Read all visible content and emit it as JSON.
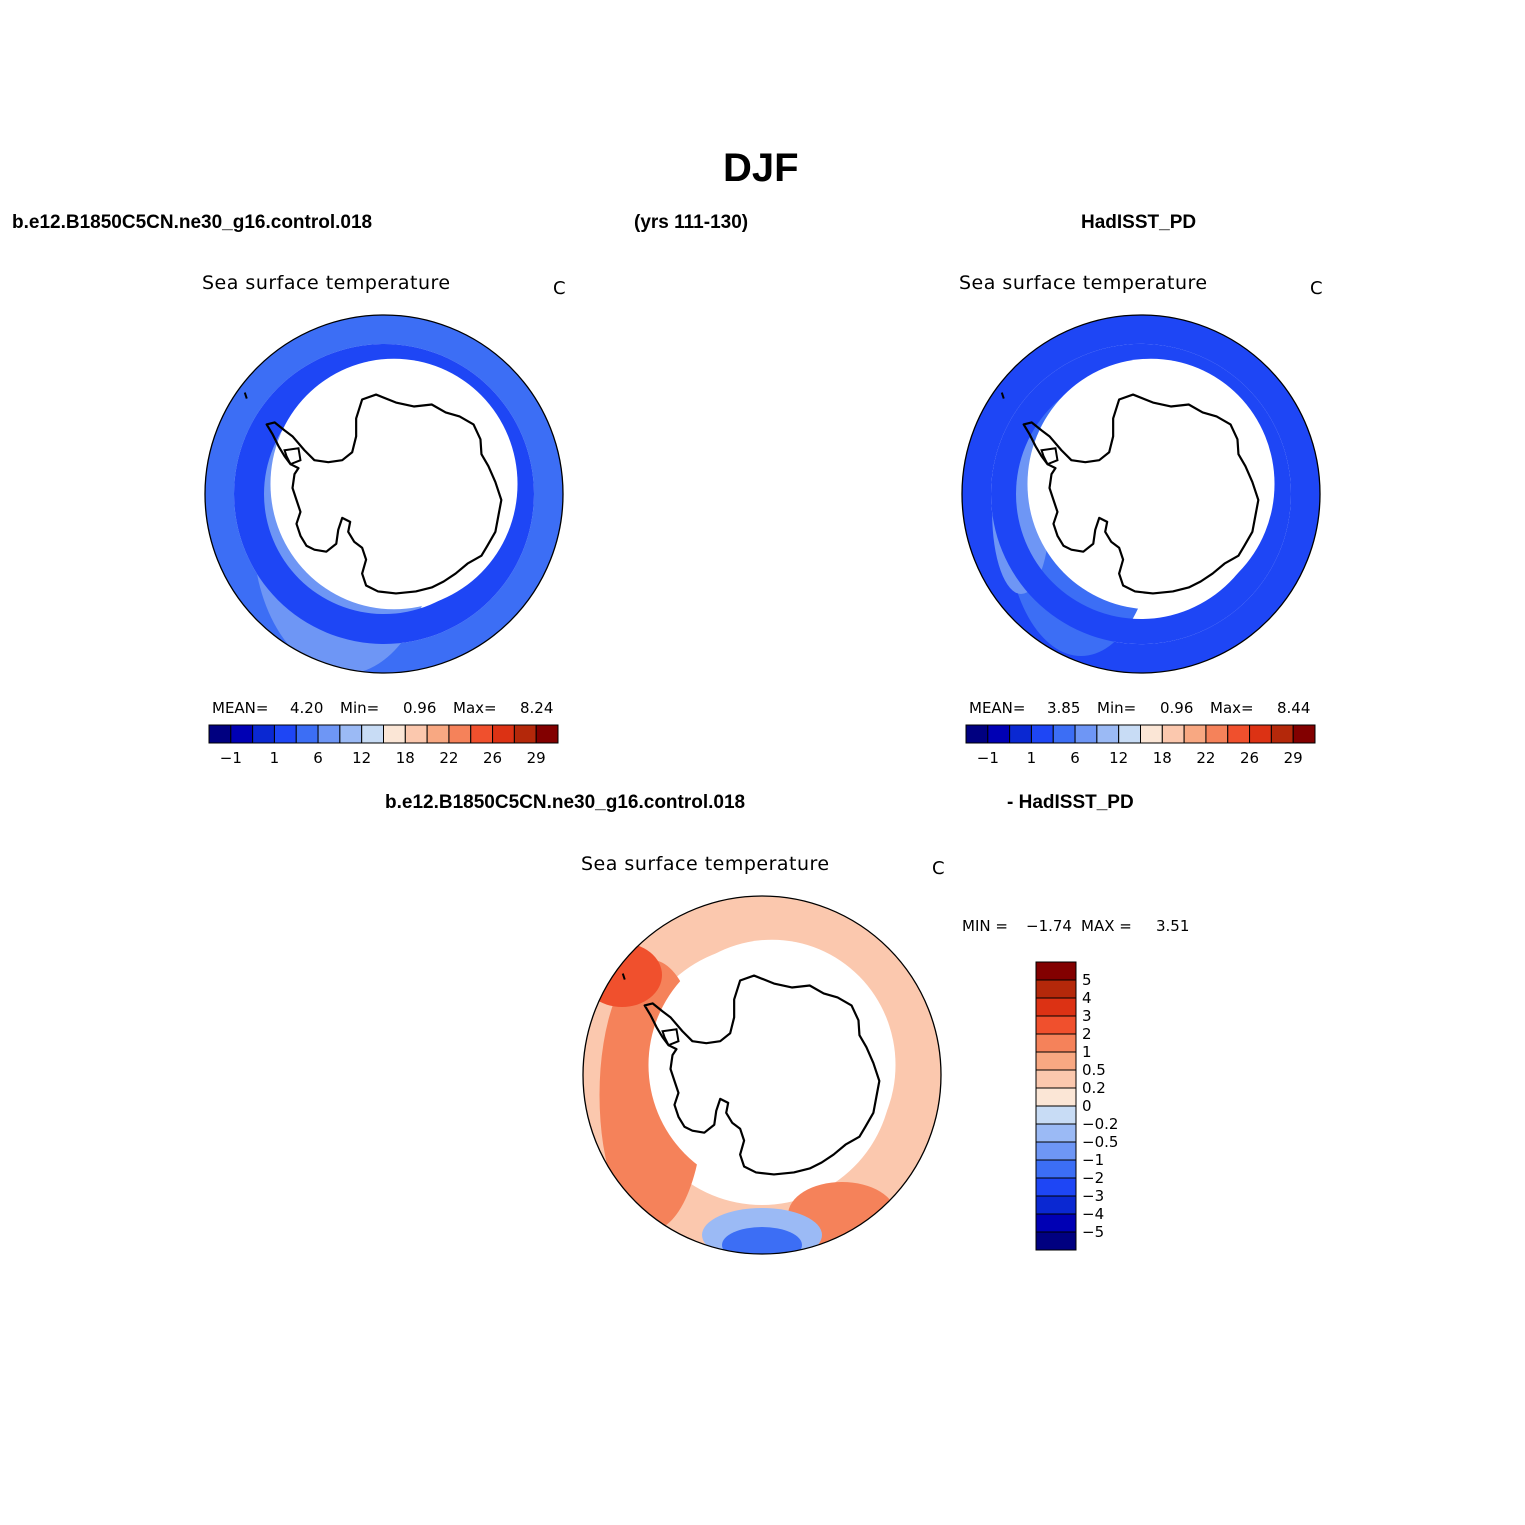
{
  "title": "DJF",
  "header": {
    "case_name": "b.e12.B1850C5CN.ne30_g16.control.018",
    "years": "(yrs 111-130)",
    "obs_name": "HadISST_PD",
    "diff_case": "b.e12.B1850C5CN.ne30_g16.control.018",
    "diff_obs": "- HadISST_PD"
  },
  "panels": {
    "model": {
      "title": "Sea surface temperature",
      "units": "C",
      "mean_label": "MEAN=",
      "mean": "4.20",
      "min_label": "Min=",
      "min": "0.96",
      "max_label": "Max=",
      "max": "8.24"
    },
    "obs": {
      "title": "Sea surface temperature",
      "units": "C",
      "mean_label": "MEAN=",
      "mean": "3.85",
      "min_label": "Min=",
      "min": "0.96",
      "max_label": "Max=",
      "max": "8.44"
    },
    "diff": {
      "title": "Sea surface temperature",
      "units": "C",
      "min_label": "MIN =",
      "min": "−1.74",
      "max_label": "MAX =",
      "max": "3.51"
    }
  },
  "colorbar_abs": {
    "colors": [
      "#000080",
      "#0000b4",
      "#0a28d2",
      "#1e46f5",
      "#3c6ef5",
      "#6e96f5",
      "#9bbaf5",
      "#c8dcf5",
      "#fbe6d6",
      "#fbc8ae",
      "#f8a882",
      "#f5825a",
      "#f0502d",
      "#dc3214",
      "#b4280a",
      "#820000"
    ],
    "tick_labels": [
      "−1",
      "1",
      "6",
      "12",
      "18",
      "22",
      "26",
      "29"
    ]
  },
  "colorbar_diff": {
    "colors": [
      "#820000",
      "#b4280a",
      "#dc3214",
      "#f0502d",
      "#f5825a",
      "#f8a882",
      "#fbc8ae",
      "#fbe6d6",
      "#c8dcf5",
      "#9bbaf5",
      "#6e96f5",
      "#3c6ef5",
      "#1e46f5",
      "#0a28d2",
      "#0000b4",
      "#000080"
    ],
    "tick_labels": [
      "5",
      "4",
      "3",
      "2",
      "1",
      "0.5",
      "0.2",
      "0",
      "−0.2",
      "−0.5",
      "−1",
      "−2",
      "−3",
      "−4",
      "−5"
    ]
  },
  "colors": {
    "land_outline": "#000000",
    "ice_mask": "#ffffff"
  }
}
